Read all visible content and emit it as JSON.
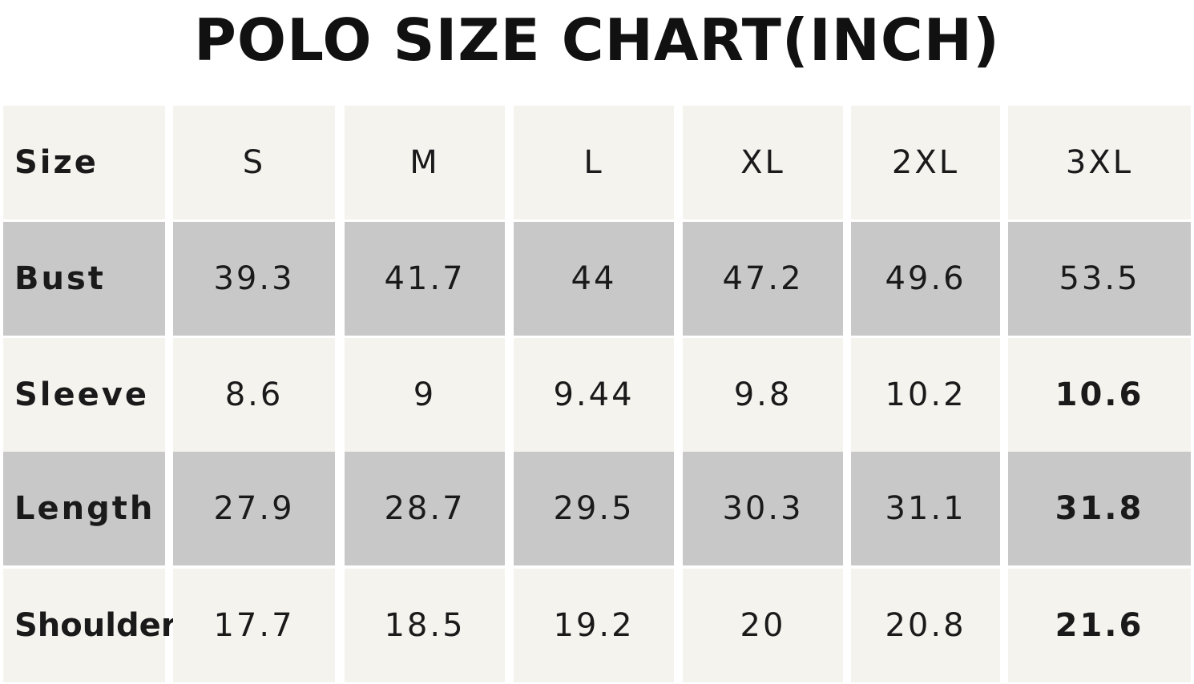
{
  "title": "POLO SIZE CHART(INCH)",
  "table": {
    "header": [
      "Size",
      "S",
      "M",
      "L",
      "XL",
      "2XL",
      "3XL"
    ],
    "rows": [
      {
        "label": "Bust",
        "values": [
          "39.3",
          "41.7",
          "44",
          "47.2",
          "49.6",
          "53.5"
        ]
      },
      {
        "label": "Sleeve",
        "values": [
          "8.6",
          "9",
          "9.44",
          "9.8",
          "10.2",
          "10.6"
        ]
      },
      {
        "label": "Length",
        "values": [
          "27.9",
          "28.7",
          "29.5",
          "30.3",
          "31.1",
          "31.8"
        ]
      },
      {
        "label": "Shoulder",
        "values": [
          "17.7",
          "18.5",
          "19.2",
          "20",
          "20.8",
          "21.6"
        ]
      }
    ]
  },
  "colors": {
    "light_band": "#f5f3ee",
    "gray_band": "#c8c8c8",
    "text": "#1a1a1a"
  }
}
